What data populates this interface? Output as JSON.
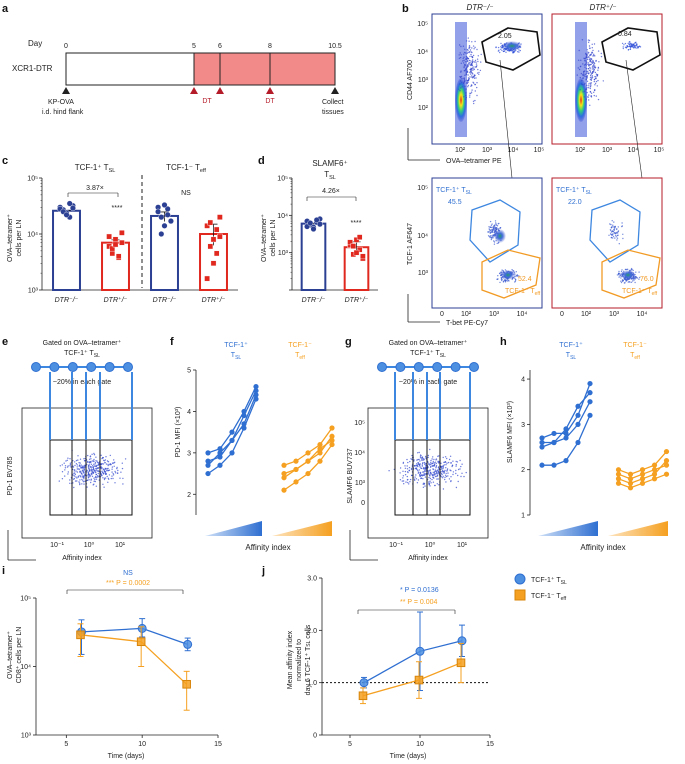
{
  "colors": {
    "blue": "#2f6fd1",
    "blue_dark": "#2b3f93",
    "blue_light": "#4d8fe0",
    "red": "#e0281f",
    "orange": "#f5a020",
    "salmon": "#f28a8a",
    "crimson": "#b51c2a",
    "gate_blue": "#3d87e0",
    "gate_orange": "#f29b25"
  },
  "panels": {
    "a": {
      "label": "a",
      "day_label": "Day",
      "row_label": "XCR1-DTR",
      "days": [
        "0",
        "5",
        "6",
        "8",
        "10.5"
      ],
      "dt_labels": [
        "DT",
        "DT"
      ],
      "injection_lines": [
        "KP-OVA",
        "i.d. hind flank"
      ],
      "collect_lines": [
        "Collect",
        "tissues"
      ]
    },
    "b": {
      "label": "b",
      "genotype_left": "DTR⁻/⁻",
      "genotype_right": "DTR⁺/⁻",
      "top_ylabel": "CD44 AF700",
      "top_xlabel": "OVA–tetramer PE",
      "gate_pct_left": "2.05",
      "gate_pct_right": "0.84",
      "bottom_ylabel": "TCF-1 AF647",
      "bottom_xlabel": "T-bet PE-Cy7",
      "tsl_label": "TCF-1⁺ T",
      "tsl_sub": "SL",
      "teff_label": "TCF-1⁻ T",
      "teff_sub": "eff",
      "tsl_pct_left": "45.5",
      "teff_pct_left": "52.4",
      "tsl_pct_right": "22.0",
      "teff_pct_right": "76.0",
      "ticks_top_y": [
        "10⁵",
        "10⁴",
        "10³",
        "10²"
      ],
      "ticks_top_x": [
        "10²",
        "10³",
        "10⁴",
        "10⁵"
      ],
      "ticks_bot_y": [
        "10⁵",
        "10⁴",
        "10³"
      ],
      "ticks_bot_x": [
        "0",
        "10²",
        "10³",
        "10⁴"
      ]
    },
    "c": {
      "label": "c",
      "group1": "TCF-1⁺ T",
      "group1_sub": "SL",
      "group2": "TCF-1⁻ T",
      "group2_sub": "eff",
      "fold": "3.87×",
      "sig": "****",
      "ns": "NS",
      "ylabel1": "OVA–tetramer⁺",
      "ylabel2": "cells per LN",
      "xcats": [
        "DTR⁻/⁻",
        "DTR⁺/⁻",
        "DTR⁻/⁻",
        "DTR⁺/⁻"
      ],
      "yticks": [
        "10⁵",
        "10⁴",
        "10³"
      ]
    },
    "d": {
      "label": "d",
      "title1": "SLAMF6⁺",
      "title2": "T",
      "title2_sub": "SL",
      "fold": "4.26×",
      "sig": "****",
      "ylabel1": "OVA–tetramer⁺",
      "ylabel2": "cells per LN",
      "xcats": [
        "DTR⁻/⁻",
        "DTR⁺/⁻"
      ],
      "yticks": [
        "10⁵",
        "10⁴",
        "10³"
      ]
    },
    "e": {
      "label": "e",
      "gate_title1": "Gated on OVA–tetramer⁺",
      "gate_title2": "TCF-1⁺ T",
      "gate_title2_sub": "SL",
      "each_gate": "~20% in each gate",
      "ylabel": "PD-1 BV785",
      "xlabel": "Affinity index",
      "xticks": [
        "10⁻¹",
        "10⁰",
        "10¹"
      ]
    },
    "f": {
      "label": "f",
      "legend_tsl": "TCF-1⁺",
      "legend_tsl2": "T",
      "legend_tsl2_sub": "SL",
      "legend_teff": "TCF-1⁻",
      "legend_teff2": "T",
      "legend_teff2_sub": "eff",
      "ylabel": "PD-1 MFI (×10³)",
      "xlabel": "Affinity index",
      "yticks": [
        "2",
        "3",
        "4",
        "5"
      ]
    },
    "g": {
      "label": "g",
      "gate_title1": "Gated on OVA–tetramer⁺",
      "gate_title2": "TCF-1⁺ T",
      "gate_title2_sub": "SL",
      "each_gate": "~20% in each gate",
      "ylabel": "SLAMF6 BUV737",
      "xlabel": "Affinity index",
      "yticks": [
        "10⁵",
        "10⁴",
        "10³",
        "0"
      ],
      "xticks": [
        "10⁻¹",
        "10⁰",
        "10¹"
      ]
    },
    "h": {
      "label": "h",
      "legend_tsl": "TCF-1⁺",
      "legend_tsl2": "T",
      "legend_tsl2_sub": "SL",
      "legend_teff": "TCF-1⁻",
      "legend_teff2": "T",
      "legend_teff2_sub": "eff",
      "ylabel": "SLAMF6 MFI (×10³)",
      "xlabel": "Affinity index",
      "yticks": [
        "1",
        "2",
        "3",
        "4"
      ]
    },
    "i": {
      "label": "i",
      "ns": "NS",
      "stat": "*** P = 0.0002",
      "ylabel1": "OVA–tetramer⁺",
      "ylabel2": "CD8⁺ cells per LN",
      "xlabel": "Time (days)",
      "xticks": [
        "5",
        "10",
        "15"
      ],
      "yticks": [
        "10⁵",
        "10⁴",
        "10³"
      ]
    },
    "j": {
      "label": "j",
      "stat1": "* P = 0.0136",
      "stat2": "** P = 0.004",
      "ylabel1": "Mean affinity index",
      "ylabel2": "normalized to",
      "ylabel3": "day 6 TCF-1⁺ T",
      "ylabel3_sub": "SL",
      "ylabel3_end": " cells",
      "xlabel": "Time (days)",
      "xticks": [
        "5",
        "10",
        "15"
      ],
      "yticks": [
        "0",
        "1.0",
        "2.0",
        "3.0"
      ],
      "legend1": "TCF-1⁺ T",
      "legend1_sub": "SL",
      "legend2": "TCF-1⁻ T",
      "legend2_sub": "eff"
    }
  },
  "chart_data": [
    {
      "panel": "c",
      "type": "bar",
      "categories": [
        "DTR⁻/⁻ TCF-1⁺ TSL",
        "DTR⁺/⁻ TCF-1⁺ TSL",
        "DTR⁻/⁻ TCF-1⁻ Teff",
        "DTR⁺/⁻ TCF-1⁻ Teff"
      ],
      "values": [
        26000,
        7000,
        21000,
        10000
      ],
      "yscale": "log",
      "ylim": [
        1000,
        100000
      ],
      "points": [
        [
          30000,
          27000,
          24000,
          20000,
          32000,
          28000,
          25000,
          22000,
          35000,
          29000
        ],
        [
          6000,
          4500,
          8000,
          3800,
          7000,
          9000,
          5500,
          6500,
          4000,
          10500
        ],
        [
          30000,
          20000,
          14000,
          28000,
          17000,
          25000,
          10000,
          33000,
          22000
        ],
        [
          14000,
          6000,
          3000,
          12000,
          9000,
          1600,
          16000,
          8000,
          4500,
          20000
        ]
      ]
    },
    {
      "panel": "d",
      "type": "bar",
      "categories": [
        "DTR⁻/⁻",
        "DTR⁺/⁻"
      ],
      "values": [
        6000,
        1400
      ],
      "yscale": "log",
      "ylim": [
        100,
        100000
      ],
      "points": [
        [
          7000,
          5500,
          4800,
          6500,
          8000,
          5000,
          6200,
          4300,
          7500,
          5800
        ],
        [
          1600,
          900,
          2200,
          1200,
          700,
          1900,
          1500,
          1000,
          2600,
          800
        ]
      ]
    },
    {
      "panel": "f",
      "type": "line",
      "x": [
        1,
        2,
        3,
        4,
        5
      ],
      "ylabel": "PD-1 MFI (×10³)",
      "series": [
        {
          "group": "TSL",
          "values": [
            2.5,
            2.7,
            3.0,
            3.6,
            4.3
          ]
        },
        {
          "group": "TSL",
          "values": [
            2.8,
            2.9,
            3.3,
            3.9,
            4.5
          ]
        },
        {
          "group": "TSL",
          "values": [
            3.0,
            3.1,
            3.5,
            4.0,
            4.6
          ]
        },
        {
          "group": "TSL",
          "values": [
            2.7,
            3.0,
            3.3,
            3.7,
            4.4
          ]
        },
        {
          "group": "Teff",
          "values": [
            2.1,
            2.3,
            2.5,
            2.8,
            3.2
          ]
        },
        {
          "group": "Teff",
          "values": [
            2.4,
            2.6,
            2.8,
            3.1,
            3.3
          ]
        },
        {
          "group": "Teff",
          "values": [
            2.7,
            2.8,
            3.0,
            3.2,
            3.6
          ]
        },
        {
          "group": "Teff",
          "values": [
            2.5,
            2.6,
            2.8,
            3.0,
            3.4
          ]
        }
      ]
    },
    {
      "panel": "h",
      "type": "line",
      "x": [
        1,
        2,
        3,
        4,
        5
      ],
      "ylabel": "SLAMF6 MFI (×10³)",
      "series": [
        {
          "group": "TSL",
          "values": [
            2.1,
            2.1,
            2.2,
            2.6,
            3.2
          ]
        },
        {
          "group": "TSL",
          "values": [
            2.5,
            2.6,
            2.7,
            3.0,
            3.5
          ]
        },
        {
          "group": "TSL",
          "values": [
            2.7,
            2.8,
            2.8,
            3.2,
            3.9
          ]
        },
        {
          "group": "TSL",
          "values": [
            2.6,
            2.6,
            2.9,
            3.4,
            3.7
          ]
        },
        {
          "group": "Teff",
          "values": [
            1.9,
            1.8,
            1.9,
            2.0,
            2.1
          ]
        },
        {
          "group": "Teff",
          "values": [
            1.8,
            1.7,
            1.8,
            1.9,
            2.2
          ]
        },
        {
          "group": "Teff",
          "values": [
            1.7,
            1.6,
            1.7,
            1.8,
            1.9
          ]
        },
        {
          "group": "Teff",
          "values": [
            2.0,
            1.9,
            2.0,
            2.1,
            2.4
          ]
        }
      ]
    },
    {
      "panel": "i",
      "type": "line",
      "x": [
        6,
        10,
        13
      ],
      "yscale": "log",
      "ylim": [
        1000,
        100000
      ],
      "xlim": [
        3,
        15
      ],
      "series": [
        {
          "name": "TCF-1⁺ TSL",
          "values": [
            32000,
            36000,
            21000
          ],
          "err_low": [
            15000,
            27000,
            17000
          ],
          "err_high": [
            48000,
            50000,
            26000
          ]
        },
        {
          "name": "TCF-1⁻ Teff",
          "values": [
            29000,
            23000,
            5500
          ],
          "err_low": [
            14000,
            10000,
            2300
          ],
          "err_high": [
            42000,
            38000,
            8500
          ]
        }
      ]
    },
    {
      "panel": "j",
      "type": "line",
      "x": [
        6,
        10,
        13
      ],
      "ylim": [
        0,
        3.0
      ],
      "xlim": [
        3,
        15
      ],
      "series": [
        {
          "name": "TCF-1⁺ TSL",
          "values": [
            1.0,
            1.6,
            1.8
          ],
          "err_low": [
            0.9,
            0.85,
            1.5
          ],
          "err_high": [
            1.1,
            2.35,
            2.1
          ]
        },
        {
          "name": "TCF-1⁻ Teff",
          "values": [
            0.75,
            1.05,
            1.38
          ],
          "err_low": [
            0.6,
            0.7,
            1.0
          ],
          "err_high": [
            0.9,
            1.4,
            1.75
          ]
        }
      ]
    }
  ]
}
